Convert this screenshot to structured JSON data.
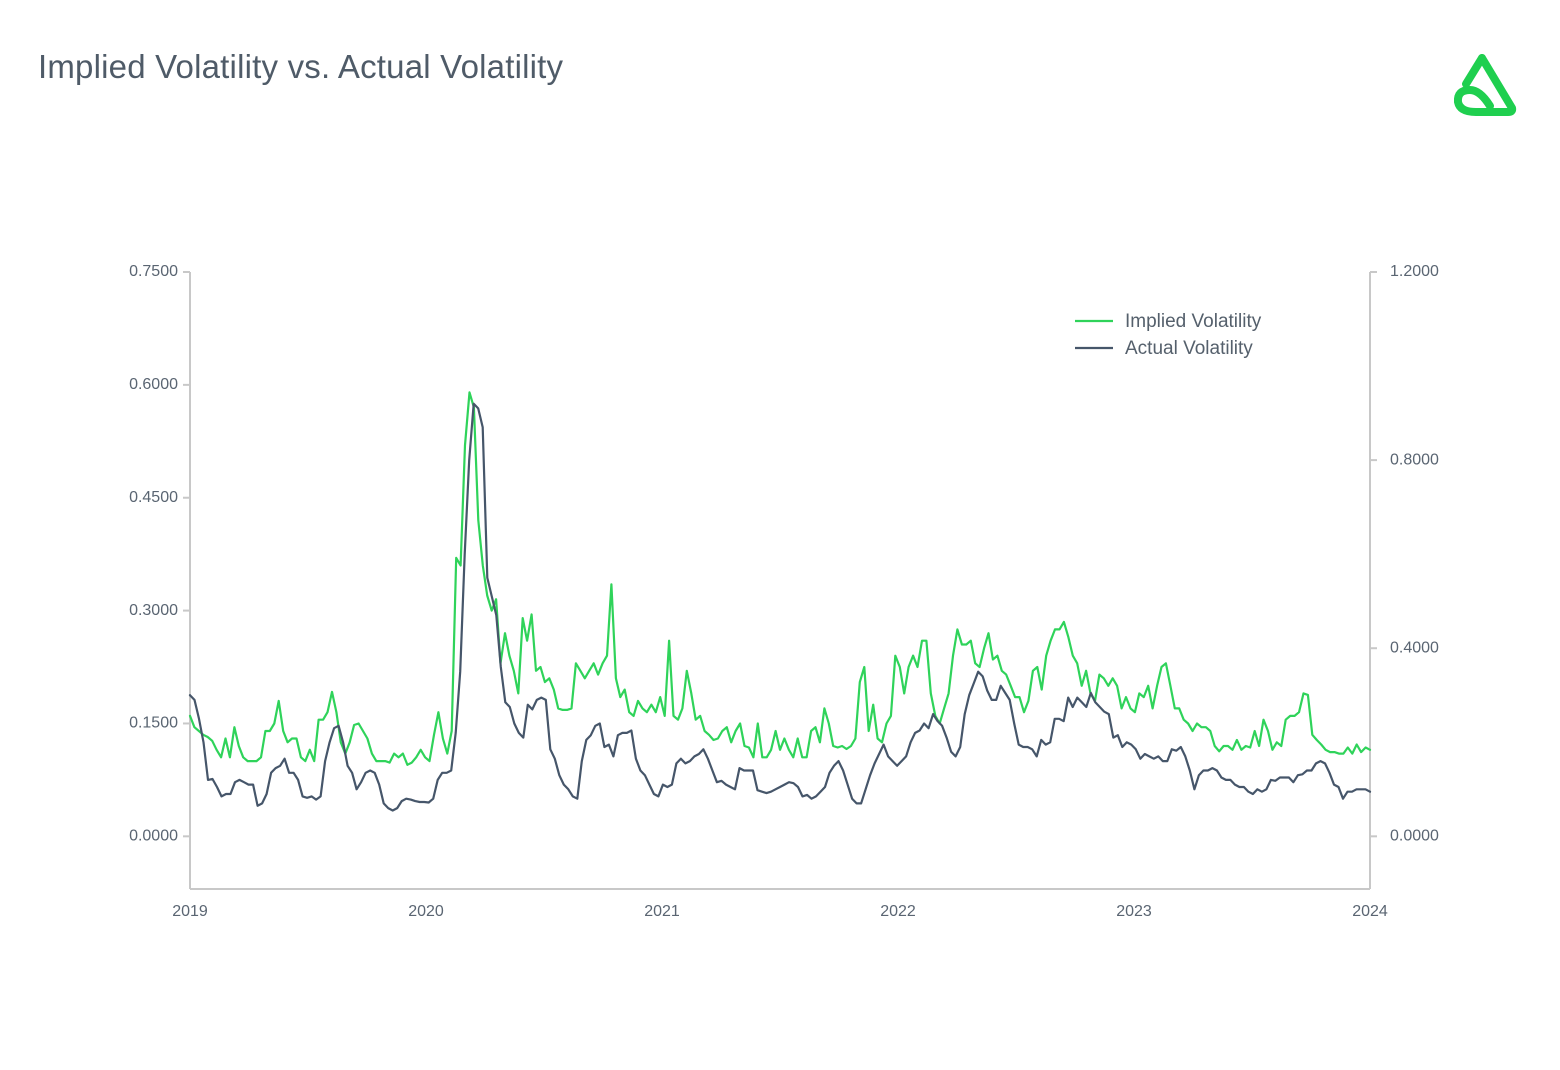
{
  "title": "Implied Volatility vs. Actual Volatility",
  "colors": {
    "implied": "#2fd35a",
    "actual": "#46566a",
    "axis": "#c8c8c8",
    "logo": "#1fcf4f"
  },
  "logo_icon": "brand-logo-icon",
  "chart_data": {
    "type": "line",
    "x_ticks": [
      "2019",
      "2020",
      "2021",
      "2022",
      "2023",
      "2024"
    ],
    "xlim": [
      2019,
      2024
    ],
    "y_left": {
      "ticks": [
        "0.7500",
        "0.6000",
        "0.4500",
        "0.3000",
        "0.1500",
        "0.0000"
      ],
      "ylim": [
        -0.07,
        0.75
      ]
    },
    "y_right": {
      "ticks": [
        "1.2000",
        "0.8000",
        "0.4000",
        "0.0000"
      ],
      "ylim": [
        -0.112,
        1.2
      ]
    },
    "legend": {
      "placement": "top-right"
    },
    "grid": false,
    "series": [
      {
        "name": "Implied Volatility",
        "axis": "left",
        "x_start": 2019,
        "x_end": 2024,
        "values": [
          0.16,
          0.145,
          0.14,
          0.135,
          0.132,
          0.127,
          0.115,
          0.105,
          0.13,
          0.105,
          0.145,
          0.12,
          0.105,
          0.1,
          0.1,
          0.1,
          0.105,
          0.14,
          0.14,
          0.15,
          0.18,
          0.14,
          0.125,
          0.13,
          0.13,
          0.105,
          0.1,
          0.115,
          0.1,
          0.155,
          0.155,
          0.165,
          0.192,
          0.165,
          0.125,
          0.11,
          0.125,
          0.148,
          0.15,
          0.14,
          0.13,
          0.11,
          0.1,
          0.1,
          0.1,
          0.098,
          0.11,
          0.105,
          0.11,
          0.095,
          0.098,
          0.105,
          0.115,
          0.105,
          0.1,
          0.135,
          0.165,
          0.13,
          0.11,
          0.14,
          0.37,
          0.36,
          0.52,
          0.59,
          0.57,
          0.42,
          0.36,
          0.32,
          0.3,
          0.315,
          0.23,
          0.27,
          0.24,
          0.22,
          0.19,
          0.29,
          0.26,
          0.295,
          0.22,
          0.225,
          0.205,
          0.21,
          0.195,
          0.17,
          0.168,
          0.168,
          0.17,
          0.23,
          0.22,
          0.21,
          0.22,
          0.23,
          0.215,
          0.23,
          0.24,
          0.335,
          0.21,
          0.185,
          0.195,
          0.165,
          0.16,
          0.18,
          0.17,
          0.165,
          0.175,
          0.165,
          0.185,
          0.16,
          0.26,
          0.16,
          0.155,
          0.17,
          0.22,
          0.19,
          0.155,
          0.16,
          0.14,
          0.135,
          0.128,
          0.13,
          0.14,
          0.145,
          0.125,
          0.14,
          0.15,
          0.12,
          0.118,
          0.105,
          0.15,
          0.105,
          0.105,
          0.115,
          0.14,
          0.115,
          0.13,
          0.115,
          0.105,
          0.13,
          0.105,
          0.105,
          0.14,
          0.145,
          0.125,
          0.17,
          0.15,
          0.12,
          0.118,
          0.12,
          0.116,
          0.12,
          0.13,
          0.205,
          0.225,
          0.14,
          0.175,
          0.13,
          0.125,
          0.15,
          0.16,
          0.24,
          0.225,
          0.19,
          0.225,
          0.24,
          0.225,
          0.26,
          0.26,
          0.19,
          0.16,
          0.15,
          0.17,
          0.19,
          0.24,
          0.275,
          0.255,
          0.255,
          0.26,
          0.23,
          0.225,
          0.25,
          0.27,
          0.235,
          0.24,
          0.22,
          0.215,
          0.2,
          0.185,
          0.185,
          0.165,
          0.18,
          0.22,
          0.225,
          0.195,
          0.24,
          0.26,
          0.275,
          0.275,
          0.285,
          0.265,
          0.24,
          0.23,
          0.2,
          0.22,
          0.19,
          0.18,
          0.215,
          0.21,
          0.2,
          0.21,
          0.2,
          0.17,
          0.185,
          0.17,
          0.165,
          0.19,
          0.185,
          0.2,
          0.17,
          0.2,
          0.225,
          0.23,
          0.2,
          0.17,
          0.17,
          0.155,
          0.15,
          0.14,
          0.15,
          0.145,
          0.145,
          0.14,
          0.12,
          0.113,
          0.12,
          0.12,
          0.115,
          0.128,
          0.115,
          0.12,
          0.118,
          0.14,
          0.12,
          0.155,
          0.14,
          0.115,
          0.125,
          0.12,
          0.155,
          0.16,
          0.16,
          0.165,
          0.19,
          0.188,
          0.135,
          0.128,
          0.122,
          0.115,
          0.112,
          0.112,
          0.11,
          0.11,
          0.118,
          0.11,
          0.122,
          0.112,
          0.118,
          0.115
        ]
      },
      {
        "name": "Actual Volatility",
        "axis": "right",
        "x_start": 2019,
        "x_end": 2024,
        "values": [
          0.3,
          0.29,
          0.25,
          0.2,
          0.12,
          0.122,
          0.105,
          0.085,
          0.09,
          0.09,
          0.115,
          0.12,
          0.115,
          0.11,
          0.11,
          0.065,
          0.07,
          0.09,
          0.135,
          0.145,
          0.15,
          0.165,
          0.135,
          0.135,
          0.12,
          0.085,
          0.082,
          0.085,
          0.078,
          0.085,
          0.16,
          0.2,
          0.23,
          0.235,
          0.2,
          0.15,
          0.135,
          0.1,
          0.115,
          0.135,
          0.14,
          0.135,
          0.11,
          0.07,
          0.06,
          0.055,
          0.06,
          0.075,
          0.08,
          0.078,
          0.075,
          0.073,
          0.073,
          0.072,
          0.08,
          0.12,
          0.135,
          0.135,
          0.14,
          0.22,
          0.35,
          0.6,
          0.8,
          0.92,
          0.91,
          0.87,
          0.55,
          0.51,
          0.47,
          0.36,
          0.285,
          0.275,
          0.24,
          0.22,
          0.21,
          0.28,
          0.27,
          0.29,
          0.295,
          0.29,
          0.185,
          0.165,
          0.13,
          0.11,
          0.1,
          0.085,
          0.08,
          0.16,
          0.205,
          0.215,
          0.235,
          0.24,
          0.19,
          0.195,
          0.17,
          0.215,
          0.22,
          0.22,
          0.225,
          0.165,
          0.14,
          0.13,
          0.11,
          0.09,
          0.085,
          0.11,
          0.105,
          0.11,
          0.155,
          0.165,
          0.155,
          0.16,
          0.17,
          0.175,
          0.185,
          0.165,
          0.14,
          0.115,
          0.118,
          0.11,
          0.105,
          0.1,
          0.145,
          0.14,
          0.14,
          0.14,
          0.098,
          0.095,
          0.092,
          0.095,
          0.1,
          0.105,
          0.11,
          0.115,
          0.113,
          0.105,
          0.085,
          0.088,
          0.08,
          0.085,
          0.095,
          0.105,
          0.135,
          0.15,
          0.16,
          0.14,
          0.11,
          0.08,
          0.07,
          0.07,
          0.1,
          0.13,
          0.155,
          0.175,
          0.195,
          0.17,
          0.16,
          0.15,
          0.16,
          0.17,
          0.2,
          0.22,
          0.225,
          0.24,
          0.23,
          0.26,
          0.245,
          0.235,
          0.21,
          0.18,
          0.17,
          0.19,
          0.26,
          0.3,
          0.325,
          0.35,
          0.34,
          0.31,
          0.29,
          0.29,
          0.32,
          0.305,
          0.29,
          0.24,
          0.195,
          0.19,
          0.19,
          0.185,
          0.17,
          0.205,
          0.195,
          0.2,
          0.25,
          0.25,
          0.245,
          0.295,
          0.275,
          0.295,
          0.285,
          0.275,
          0.305,
          0.285,
          0.275,
          0.265,
          0.26,
          0.21,
          0.215,
          0.19,
          0.2,
          0.195,
          0.185,
          0.165,
          0.175,
          0.17,
          0.165,
          0.17,
          0.16,
          0.16,
          0.185,
          0.182,
          0.19,
          0.17,
          0.14,
          0.1,
          0.13,
          0.14,
          0.14,
          0.145,
          0.14,
          0.125,
          0.12,
          0.12,
          0.11,
          0.105,
          0.105,
          0.095,
          0.09,
          0.1,
          0.095,
          0.1,
          0.12,
          0.118,
          0.125,
          0.125,
          0.125,
          0.115,
          0.13,
          0.132,
          0.14,
          0.14,
          0.155,
          0.16,
          0.155,
          0.135,
          0.11,
          0.105,
          0.08,
          0.095,
          0.095,
          0.1,
          0.1,
          0.1,
          0.095
        ]
      }
    ]
  }
}
